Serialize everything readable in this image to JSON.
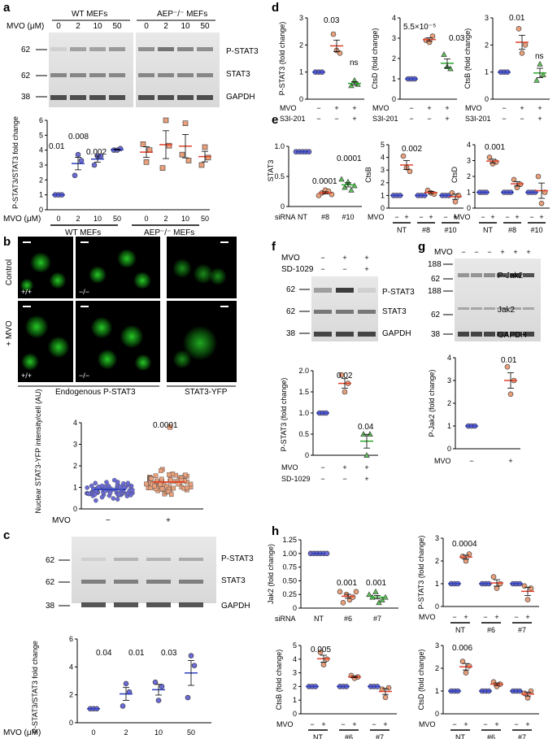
{
  "panels": [
    "a",
    "b",
    "c",
    "d",
    "e",
    "f",
    "g",
    "h"
  ],
  "blot_a": {
    "groups": [
      "WT MEFs",
      "AEP⁻/⁻ MEFs"
    ],
    "mvo_label": "MVO (μM)",
    "doses": [
      "0",
      "2",
      "10",
      "50",
      "0",
      "2",
      "10",
      "50"
    ],
    "markers": [
      "62",
      "62",
      "38"
    ],
    "bands": [
      "P-STAT3",
      "STAT3",
      "GAPDH"
    ]
  },
  "chart_a": {
    "ylabel": "P-STAT3/STAT3 fold change",
    "yticks": [
      "0",
      "1",
      "2",
      "3",
      "4",
      "5",
      "6"
    ],
    "xticks": [
      "0",
      "2",
      "10",
      "50",
      "0",
      "2",
      "10",
      "50"
    ],
    "xlabel": "MVO (μM)",
    "groups": [
      "WT MEFs",
      "AEP⁻/⁻ MEFs"
    ],
    "pvals": [
      "0.01",
      "0.008",
      "0.002"
    ]
  },
  "panel_b": {
    "row_labels": [
      "Control",
      "+ MVO"
    ],
    "genotypes": [
      "+/+",
      "−/−",
      "+/+",
      "−/−"
    ],
    "captions": [
      "Endogenous P-STAT3",
      "STAT3-YFP"
    ]
  },
  "chart_b": {
    "ylabel": "Nuclear STAT3-YFP intensity/cell (AU)",
    "yticks": [
      "0",
      "1",
      "2",
      "3",
      "4"
    ],
    "pval": "0.0001",
    "x_row_label": "MVO",
    "x_signs": [
      "−",
      "+"
    ]
  },
  "blot_c": {
    "markers": [
      "62",
      "62",
      "38"
    ],
    "bands": [
      "P-STAT3",
      "STAT3",
      "GAPDH"
    ]
  },
  "chart_c": {
    "ylabel": "P-STAT3/STAT3 fold change",
    "yticks": [
      "0",
      "2",
      "4",
      "6"
    ],
    "xlabel": "MVO (μM)",
    "xticks": [
      "0",
      "2",
      "10",
      "50"
    ],
    "pvals": [
      "0.04",
      "0.01",
      "0.03"
    ]
  },
  "charts_d": [
    {
      "ylabel": "P-STAT3 (fold change)",
      "yticks": [
        "0",
        "1",
        "2",
        "3"
      ],
      "pvals": [
        "0.03",
        "ns"
      ]
    },
    {
      "ylabel": "CtsD (fold change)",
      "yticks": [
        "0",
        "1",
        "2",
        "3",
        "4"
      ],
      "pvals": [
        "5.5×10⁻⁵",
        "0.03"
      ]
    },
    {
      "ylabel": "CtsB (fold change)",
      "yticks": [
        "0",
        "1",
        "2",
        "3"
      ],
      "pvals": [
        "0.01",
        "ns"
      ]
    }
  ],
  "d_rows": {
    "mvo": "MVO",
    "s3i": "S3I-201",
    "mvo_signs": [
      "−",
      "+",
      "+"
    ],
    "s3i_signs": [
      "−",
      "−",
      "+"
    ]
  },
  "charts_e": [
    {
      "ylabel": "STAT3",
      "yticks": [
        "0",
        "0.5",
        "1.0"
      ],
      "pvals": [
        "0.0001",
        "0.0001"
      ],
      "row": "siRNA",
      "xticks": [
        "NT",
        "#8",
        "#10"
      ]
    },
    {
      "ylabel": "CtsB",
      "yticks": [
        "0",
        "1",
        "2",
        "3",
        "4",
        "5"
      ],
      "pvals": [
        "0.002"
      ],
      "row": "MVO",
      "groups": [
        "NT",
        "#8",
        "#10"
      ]
    },
    {
      "ylabel": "CtsD",
      "yticks": [
        "0",
        "1",
        "2",
        "3",
        "4"
      ],
      "pvals": [
        "0.001"
      ],
      "row": "MVO",
      "groups": [
        "NT",
        "#8",
        "#10"
      ]
    }
  ],
  "blot_f": {
    "rows": [
      "MVO",
      "SD-1029"
    ],
    "signs_mvo": [
      "−",
      "+",
      "+"
    ],
    "signs_sd": [
      "−",
      "−",
      "+"
    ],
    "markers": [
      "62",
      "62",
      "38"
    ],
    "bands": [
      "P-STAT3",
      "STAT3",
      "GAPDH"
    ]
  },
  "chart_f": {
    "ylabel": "P-STAT3 (fold change)",
    "yticks": [
      "0",
      "0.5",
      "1.0",
      "1.5",
      "2.0"
    ],
    "pvals": [
      "0.02",
      "0.04"
    ],
    "rows": [
      "MVO",
      "SD-1029"
    ],
    "signs_mvo": [
      "−",
      "+",
      "+"
    ],
    "signs_sd": [
      "−",
      "−",
      "+"
    ]
  },
  "blot_g": {
    "row": "MVO",
    "signs": [
      "−",
      "−",
      "−",
      "+",
      "+",
      "+"
    ],
    "markers": [
      "188",
      "62",
      "188",
      "62",
      "38"
    ],
    "bands": [
      "P-Jak2",
      "Jak2",
      "GAPDH"
    ]
  },
  "chart_g": {
    "ylabel": "P-Jak2 (fold change)",
    "yticks": [
      "0",
      "1",
      "2",
      "3",
      "4"
    ],
    "pval": "0.01",
    "row": "MVO",
    "signs": [
      "−",
      "+"
    ]
  },
  "charts_h": [
    {
      "ylabel": "Jak2 (fold change)",
      "yticks": [
        "0",
        "0.25",
        "0.50",
        "0.75",
        "1.00",
        "1.25"
      ],
      "pvals": [
        "0.001",
        "0.001"
      ],
      "row": "siRNA",
      "xticks": [
        "NT",
        "#6",
        "#7"
      ]
    },
    {
      "ylabel": "P-STAT3 (fold change)",
      "yticks": [
        "0",
        "1",
        "2",
        "3"
      ],
      "pvals": [
        "0.0004"
      ],
      "row": "MVO",
      "groups": [
        "NT",
        "#6",
        "#7"
      ]
    },
    {
      "ylabel": "CtsB (fold change)",
      "yticks": [
        "0",
        "1",
        "2",
        "3",
        "4",
        "5"
      ],
      "pvals": [
        "0.005"
      ],
      "row": "MVO",
      "groups": [
        "NT",
        "#6",
        "#7"
      ]
    },
    {
      "ylabel": "CtsD (fold change)",
      "yticks": [
        "0",
        "1",
        "2",
        "3"
      ],
      "pvals": [
        "0.006"
      ],
      "row": "MVO",
      "groups": [
        "NT",
        "#6",
        "#7"
      ]
    }
  ],
  "colors": {
    "blue": "#6b6bd6",
    "orange": "#e8a07c",
    "green": "#5fbf5a",
    "mean_blue": "#2b3fbf",
    "mean_red": "#e0402a",
    "mean_green": "#2aa62a"
  },
  "chart_data": [
    {
      "type": "scatter",
      "panel": "a",
      "series": [
        {
          "name": "WT MEFs",
          "x": [
            "0",
            "2",
            "10",
            "50"
          ],
          "values": [
            [
              1.0,
              1.0,
              1.0
            ],
            [
              2.3,
              3.7,
              3.3
            ],
            [
              3.0,
              3.6,
              3.6
            ],
            [
              4.0,
              4.0,
              4.1
            ]
          ]
        },
        {
          "name": "AEP⁻/⁻ MEFs",
          "x": [
            "0",
            "2",
            "10",
            "50"
          ],
          "values": [
            [
              4.4,
              3.2,
              4.0
            ],
            [
              2.8,
              6.0,
              4.3
            ],
            [
              3.7,
              5.8,
              3.3
            ],
            [
              3.0,
              4.2,
              3.5
            ]
          ]
        }
      ],
      "ylim": [
        0,
        6
      ]
    },
    {
      "type": "scatter",
      "panel": "b",
      "categories": [
        "−",
        "+"
      ],
      "mean": [
        0.9,
        1.25
      ],
      "ylim": [
        0,
        4
      ]
    },
    {
      "type": "scatter",
      "panel": "c",
      "categories": [
        "0",
        "2",
        "10",
        "50"
      ],
      "values": [
        [
          1,
          1,
          1
        ],
        [
          1.2,
          2.8,
          2.2
        ],
        [
          2.9,
          1.6,
          2.6
        ],
        [
          1.8,
          4.8,
          4.1
        ]
      ],
      "ylim": [
        0,
        6
      ]
    },
    {
      "type": "scatter",
      "panel": "d1",
      "values": [
        [
          1,
          1,
          1
        ],
        [
          2.4,
          1.8,
          1.7
        ],
        [
          0.5,
          0.7,
          0.55
        ]
      ],
      "ylim": [
        0,
        3
      ]
    },
    {
      "type": "scatter",
      "panel": "d2",
      "values": [
        [
          1,
          1,
          1
        ],
        [
          2.9,
          2.8,
          3.1
        ],
        [
          2.2,
          1.6,
          1.5
        ]
      ],
      "ylim": [
        0,
        4
      ]
    },
    {
      "type": "scatter",
      "panel": "d3",
      "values": [
        [
          1,
          1,
          1
        ],
        [
          2.6,
          1.7,
          2.0
        ],
        [
          0.7,
          1.3,
          0.9
        ]
      ],
      "ylim": [
        0,
        3
      ]
    },
    {
      "type": "scatter",
      "panel": "e1",
      "categories": [
        "NT",
        "#8",
        "#10"
      ],
      "values": [
        [
          1,
          1,
          1,
          1,
          1
        ],
        [
          0.2,
          0.25,
          0.3,
          0.28,
          0.22
        ],
        [
          0.5,
          0.35,
          0.45,
          0.3,
          0.38
        ]
      ],
      "ylim": [
        0,
        1.1
      ]
    },
    {
      "type": "scatter",
      "panel": "e2",
      "values": [
        [
          1,
          1,
          1
        ],
        [
          4.1,
          3.2,
          2.9
        ],
        [
          1,
          1,
          1
        ],
        [
          1.4,
          1.2,
          1.1
        ],
        [
          1,
          1,
          1
        ],
        [
          1.2,
          0.5,
          1.0
        ]
      ],
      "ylim": [
        0,
        5
      ]
    },
    {
      "type": "scatter",
      "panel": "e3",
      "values": [
        [
          1,
          1,
          1
        ],
        [
          3.2,
          2.8,
          2.9
        ],
        [
          1,
          1,
          1
        ],
        [
          1.8,
          1.3,
          1.5
        ],
        [
          1,
          1,
          1
        ],
        [
          2.0,
          0.3,
          1.0
        ]
      ],
      "ylim": [
        0,
        4
      ]
    },
    {
      "type": "scatter",
      "panel": "f",
      "values": [
        [
          1,
          1,
          1
        ],
        [
          1.9,
          1.5,
          1.7
        ],
        [
          0.5,
          0.0,
          0.5
        ]
      ],
      "ylim": [
        0,
        2
      ]
    },
    {
      "type": "scatter",
      "panel": "g",
      "values": [
        [
          1,
          1,
          1
        ],
        [
          3.6,
          2.4,
          3.0
        ]
      ],
      "ylim": [
        0,
        4
      ]
    },
    {
      "type": "scatter",
      "panel": "h1",
      "values": [
        [
          1,
          1,
          1,
          1,
          1,
          1
        ],
        [
          0.3,
          0.1,
          0.25,
          0.15,
          0.2,
          0.3
        ],
        [
          0.25,
          0.2,
          0.3,
          0.1,
          0.15,
          0.2
        ]
      ],
      "ylim": [
        0,
        1.25
      ]
    },
    {
      "type": "scatter",
      "panel": "h2",
      "values": [
        [
          1,
          1,
          1
        ],
        [
          2.2,
          2.0,
          2.3
        ],
        [
          1,
          1,
          1
        ],
        [
          1.3,
          0.8,
          1.0
        ],
        [
          1,
          1,
          1
        ],
        [
          0.9,
          0.3,
          0.8
        ]
      ],
      "ylim": [
        0,
        3
      ]
    },
    {
      "type": "scatter",
      "panel": "h3",
      "values": [
        [
          2,
          2,
          2
        ],
        [
          4.5,
          3.6,
          4.0
        ],
        [
          2,
          2,
          2
        ],
        [
          2.8,
          2.6,
          2.7
        ],
        [
          2,
          2,
          2
        ],
        [
          1.8,
          1.2,
          1.9
        ]
      ],
      "ylim": [
        0,
        5
      ]
    },
    {
      "type": "scatter",
      "panel": "h4",
      "values": [
        [
          1,
          1,
          1
        ],
        [
          2.3,
          1.8,
          2.1
        ],
        [
          1,
          1,
          1
        ],
        [
          1.4,
          1.2,
          1.3
        ],
        [
          1,
          1,
          1
        ],
        [
          0.9,
          0.7,
          1.0
        ]
      ],
      "ylim": [
        0,
        3
      ]
    }
  ]
}
